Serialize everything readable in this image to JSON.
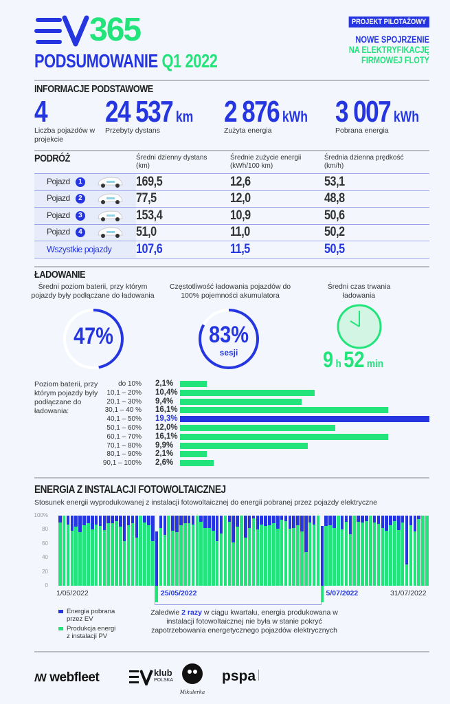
{
  "header": {
    "logo_text_ev": "EV",
    "logo_text_num": "365",
    "title_a": "PODSUMOWANIE",
    "title_b": "Q1 2022",
    "badge": "PROJEKT PILOTAŻOWY",
    "tagline_1": "NOWE SPOJRZENIE",
    "tagline_2": "NA ELEKTRYFIKACJĘ",
    "tagline_3": "FIRMOWEJ FLOTY"
  },
  "colors": {
    "blue": "#2536e0",
    "green": "#22e47a",
    "background": "#f3f7fd"
  },
  "basic": {
    "title": "INFORMACJE PODSTAWOWE",
    "stats": [
      {
        "value": "4",
        "unit": "",
        "label": "Liczba pojazdów w projekcie"
      },
      {
        "value": "24 537",
        "unit": "km",
        "label": "Przebyty dystans"
      },
      {
        "value": "2 876",
        "unit": "kWh",
        "label": "Zużyta energia"
      },
      {
        "value": "3 007",
        "unit": "kWh",
        "label": "Pobrana energia"
      }
    ]
  },
  "trip": {
    "title": "PODRÓŻ",
    "columns": [
      {
        "label": "Średni dzienny dystans",
        "unit": "(km)"
      },
      {
        "label": "Średnie zużycie energii",
        "unit": "(kWh/100 km)"
      },
      {
        "label": "Średnia dzienna prędkość",
        "unit": "(km/h)"
      }
    ],
    "rows": [
      {
        "name": "Pojazd",
        "num": "1",
        "icon": "car-icon",
        "values": [
          "169,5",
          "12,6",
          "53,1"
        ]
      },
      {
        "name": "Pojazd",
        "num": "2",
        "icon": "car-icon",
        "values": [
          "77,5",
          "12,0",
          "48,8"
        ]
      },
      {
        "name": "Pojazd",
        "num": "3",
        "icon": "car-icon",
        "values": [
          "153,4",
          "10,9",
          "50,6"
        ]
      },
      {
        "name": "Pojazd",
        "num": "4",
        "icon": "car-icon",
        "values": [
          "51,0",
          "11,0",
          "50,2"
        ]
      }
    ],
    "total": {
      "name": "Wszystkie pojazdy",
      "values": [
        "107,6",
        "11,5",
        "50,5"
      ]
    }
  },
  "charging": {
    "title": "ŁADOWANIE",
    "gauge1": {
      "caption": "Średni poziom baterii, przy którym pojazdy były podłączane do ładowania",
      "value": "47%",
      "fraction": 0.47
    },
    "gauge2": {
      "caption": "Częstotliwość ładowania pojazdów do 100% pojemności akumulatora",
      "value": "83%",
      "sub": "sesji",
      "fraction": 0.83
    },
    "duration": {
      "caption": "Średni czas trwania ładowania",
      "hours": "9",
      "h_unit": "h",
      "minutes": "52",
      "min_unit": "min",
      "icon": "stopwatch-icon"
    }
  },
  "chart_data": [
    {
      "type": "bar",
      "orientation": "horizontal",
      "label": "Poziom baterii, przy którym pojazdy były podłączane do ładowania:",
      "categories": [
        "do 10%",
        "10,1 – 20%",
        "20,1 – 30%",
        "30,1 – 40 %",
        "40,1 – 50%",
        "50,1 – 60%",
        "60,1 – 70%",
        "70,1 – 80%",
        "80,1 – 90%",
        "90,1 – 100%"
      ],
      "values": [
        2.1,
        10.4,
        9.4,
        16.1,
        19.3,
        12.0,
        16.1,
        9.9,
        2.1,
        2.6
      ],
      "value_labels": [
        "2,1%",
        "10,4%",
        "9,4%",
        "16,1%",
        "19,3%",
        "12,0%",
        "16,1%",
        "9,9%",
        "2,1%",
        "2,6%"
      ],
      "highlight_index": 4
    },
    {
      "type": "bar",
      "stacked": true,
      "title": "ENERGIA Z INSTALACJI FOTOWOLTAICZNEJ",
      "subtitle": "Stosunek energii wyprodukowanej z instalacji fotowoltaicznej do energii pobranej przez pojazdy elektryczne",
      "ylim": [
        0,
        100
      ],
      "y_ticks": [
        "100%",
        "80",
        "60",
        "40",
        "20",
        "0"
      ],
      "x_labels": [
        "1/05/2022",
        "25/05/2022",
        "5/07/2022",
        "31/07/2022"
      ],
      "highlight_labels": [
        "25/05/2022",
        "5/07/2022"
      ],
      "series": [
        {
          "name": "Energia pobrana przez EV",
          "color": "#2536e0"
        },
        {
          "name": "Produkcja energi z instalacji PV",
          "color": "#22e47a"
        }
      ],
      "pv_share": [
        90,
        100,
        87,
        78,
        84,
        76,
        86,
        89,
        80,
        87,
        85,
        79,
        89,
        89,
        92,
        84,
        64,
        86,
        89,
        69,
        100,
        90,
        86,
        64,
        0,
        82,
        73,
        100,
        78,
        76,
        86,
        89,
        89,
        87,
        100,
        91,
        82,
        82,
        78,
        64,
        75,
        100,
        91,
        62,
        84,
        100,
        69,
        82,
        96,
        80,
        87,
        85,
        86,
        89,
        81,
        94,
        92,
        81,
        82,
        86,
        77,
        48,
        90,
        87,
        100,
        0,
        85,
        86,
        82,
        100,
        80,
        91,
        74,
        100,
        91,
        90,
        92,
        100,
        90,
        88,
        82,
        78,
        86,
        92,
        79,
        90,
        30,
        86,
        77,
        95,
        100,
        100
      ],
      "deficit_days": [
        {
          "date": "25/05/2022",
          "ev_top": 77
        },
        {
          "date": "5/07/2022",
          "ev_top": 85
        }
      ]
    }
  ],
  "pv_note": {
    "pre": "Zaledwie ",
    "highlight": "2 razy",
    "post": " w ciągu kwartału, energia produkowana w instalacji fotowoltaicznej nie była w stanie pokryć zapotrzebowania energetycznego pojazdów elektrycznych"
  },
  "legend": {
    "ev_1": "Energia pobrana",
    "ev_2": "przez EV",
    "pv_1": "Produkcja energi",
    "pv_2": "z instalacji PV"
  },
  "partners": {
    "webfleet": "webfleet",
    "evklub_1": "klub",
    "evklub_2": "POLSKA",
    "mikulerka": "Mikulerka",
    "pspa": "pspa"
  }
}
